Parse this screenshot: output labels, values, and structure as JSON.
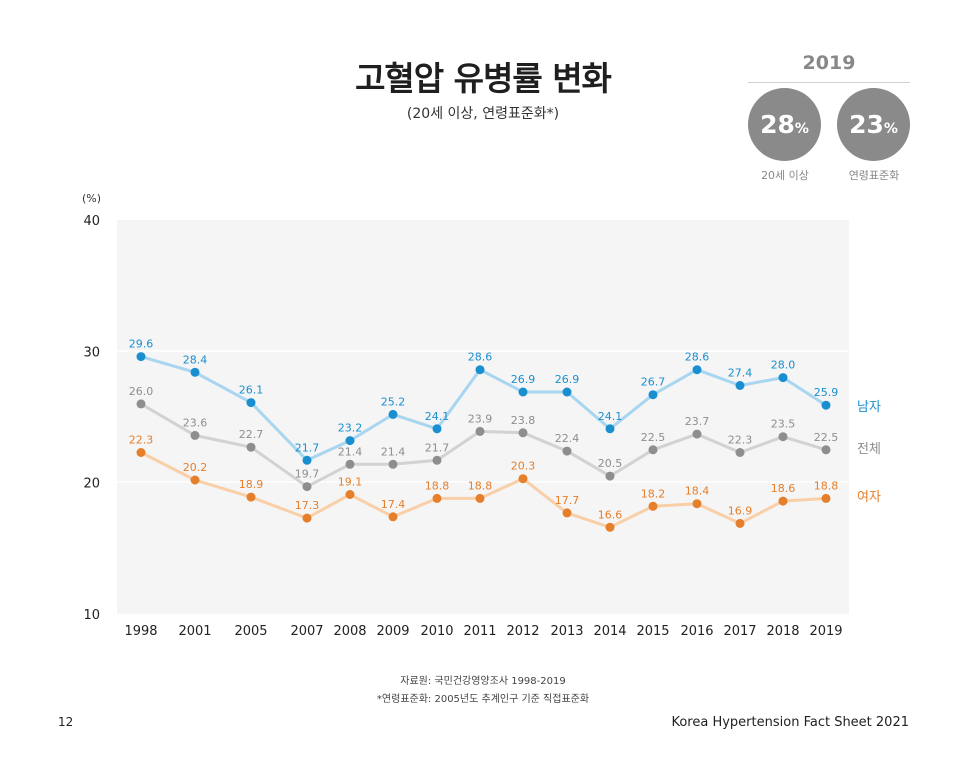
{
  "header": {
    "title": "고혈압 유병률 변화",
    "subtitle": "(20세 이상, 연령표준화*)"
  },
  "summary": {
    "year": "2019",
    "items": [
      {
        "value": "28",
        "unit": "%",
        "label": "20세 이상"
      },
      {
        "value": "23",
        "unit": "%",
        "label": "연령표준화"
      }
    ]
  },
  "chart_data": {
    "type": "line",
    "x": [
      "1998",
      "2001",
      "2005",
      "2007",
      "2008",
      "2009",
      "2010",
      "2011",
      "2012",
      "2013",
      "2014",
      "2015",
      "2016",
      "2017",
      "2018",
      "2019"
    ],
    "y_unit_label": "(%)",
    "ylim": [
      10,
      40
    ],
    "yticks": [
      10,
      20,
      30,
      40
    ],
    "grid": false,
    "legend_placement": "right",
    "series": [
      {
        "name": "남자",
        "color": "#1a8fcf",
        "line_color": "#a8d5f0",
        "values": [
          29.6,
          28.4,
          26.1,
          21.7,
          23.2,
          25.2,
          24.1,
          28.6,
          26.9,
          26.9,
          24.1,
          26.7,
          28.6,
          27.4,
          28.0,
          25.9
        ]
      },
      {
        "name": "전체",
        "color": "#8e8e8e",
        "line_color": "#d2d2d2",
        "values": [
          26.0,
          23.6,
          22.7,
          19.7,
          21.4,
          21.4,
          21.7,
          23.9,
          23.8,
          22.4,
          20.5,
          22.5,
          23.7,
          22.3,
          23.5,
          22.5
        ]
      },
      {
        "name": "여자",
        "color": "#e57f2b",
        "line_color": "#f8cfa7",
        "values": [
          22.3,
          20.2,
          18.9,
          17.3,
          19.1,
          17.4,
          18.8,
          18.8,
          20.3,
          17.7,
          16.6,
          18.2,
          18.4,
          16.9,
          18.6,
          18.8
        ]
      }
    ]
  },
  "footer": {
    "source": "자료원: 국민건강영양조사 1998-2019",
    "note": "*연령표준화: 2005년도 추계인구 기준 직접표준화",
    "page": "12",
    "brand": "Korea Hypertension Fact Sheet 2021"
  }
}
